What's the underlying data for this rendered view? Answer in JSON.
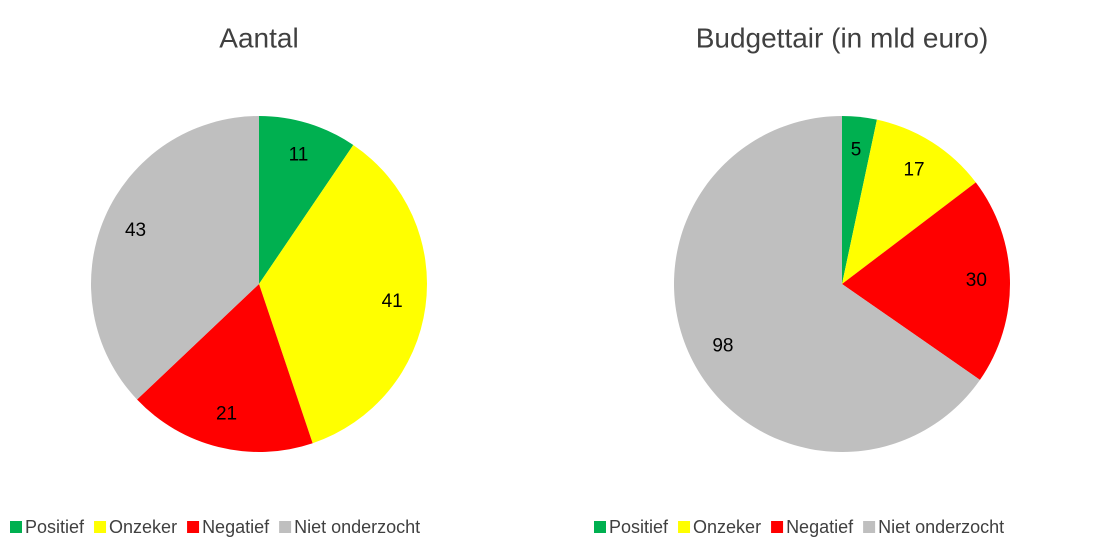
{
  "chart_data": [
    {
      "type": "pie",
      "title": "Aantal",
      "categories": [
        "Positief",
        "Onzeker",
        "Negatief",
        "Niet onderzocht"
      ],
      "values": [
        11,
        41,
        21,
        43
      ],
      "colors": [
        "#00b050",
        "#ffff00",
        "#ff0000",
        "#bfbfbf"
      ],
      "legend": "bottom"
    },
    {
      "type": "pie",
      "title": "Budgettair (in mld euro)",
      "categories": [
        "Positief",
        "Onzeker",
        "Negatief",
        "Niet onderzocht"
      ],
      "values": [
        5,
        17,
        30,
        98
      ],
      "colors": [
        "#00b050",
        "#ffff00",
        "#ff0000",
        "#bfbfbf"
      ],
      "legend": "bottom"
    }
  ]
}
